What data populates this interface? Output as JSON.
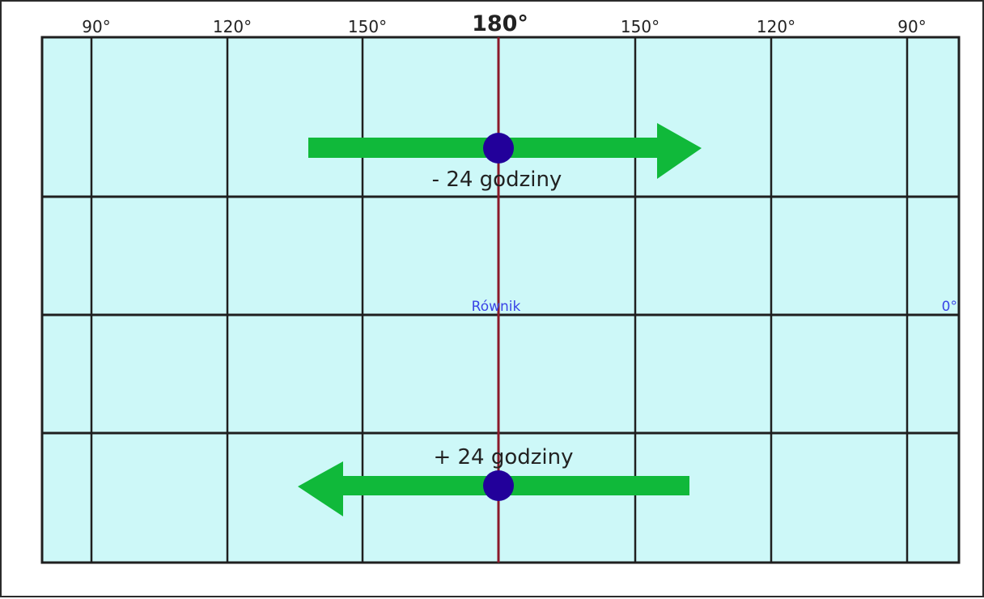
{
  "longitude_labels": [
    {
      "text": "90°",
      "bold": false
    },
    {
      "text": "120°",
      "bold": false
    },
    {
      "text": "150°",
      "bold": false
    },
    {
      "text": "180°",
      "bold": true
    },
    {
      "text": "150°",
      "bold": false
    },
    {
      "text": "120°",
      "bold": false
    },
    {
      "text": "90°",
      "bold": false
    }
  ],
  "equator": {
    "label": "Równik",
    "degree": "0°"
  },
  "top_arrow": {
    "label": "- 24 godziny",
    "direction": "east"
  },
  "bottom_arrow": {
    "label": "+ 24 godziny",
    "direction": "west"
  },
  "colors": {
    "ocean": "#cdf8f8",
    "grid": "#1f1f1f",
    "date_line": "#8b1a2a",
    "arrow": "#10b93a",
    "dot": "#22009a",
    "equator_text": "#3a44e6",
    "text": "#222222"
  }
}
